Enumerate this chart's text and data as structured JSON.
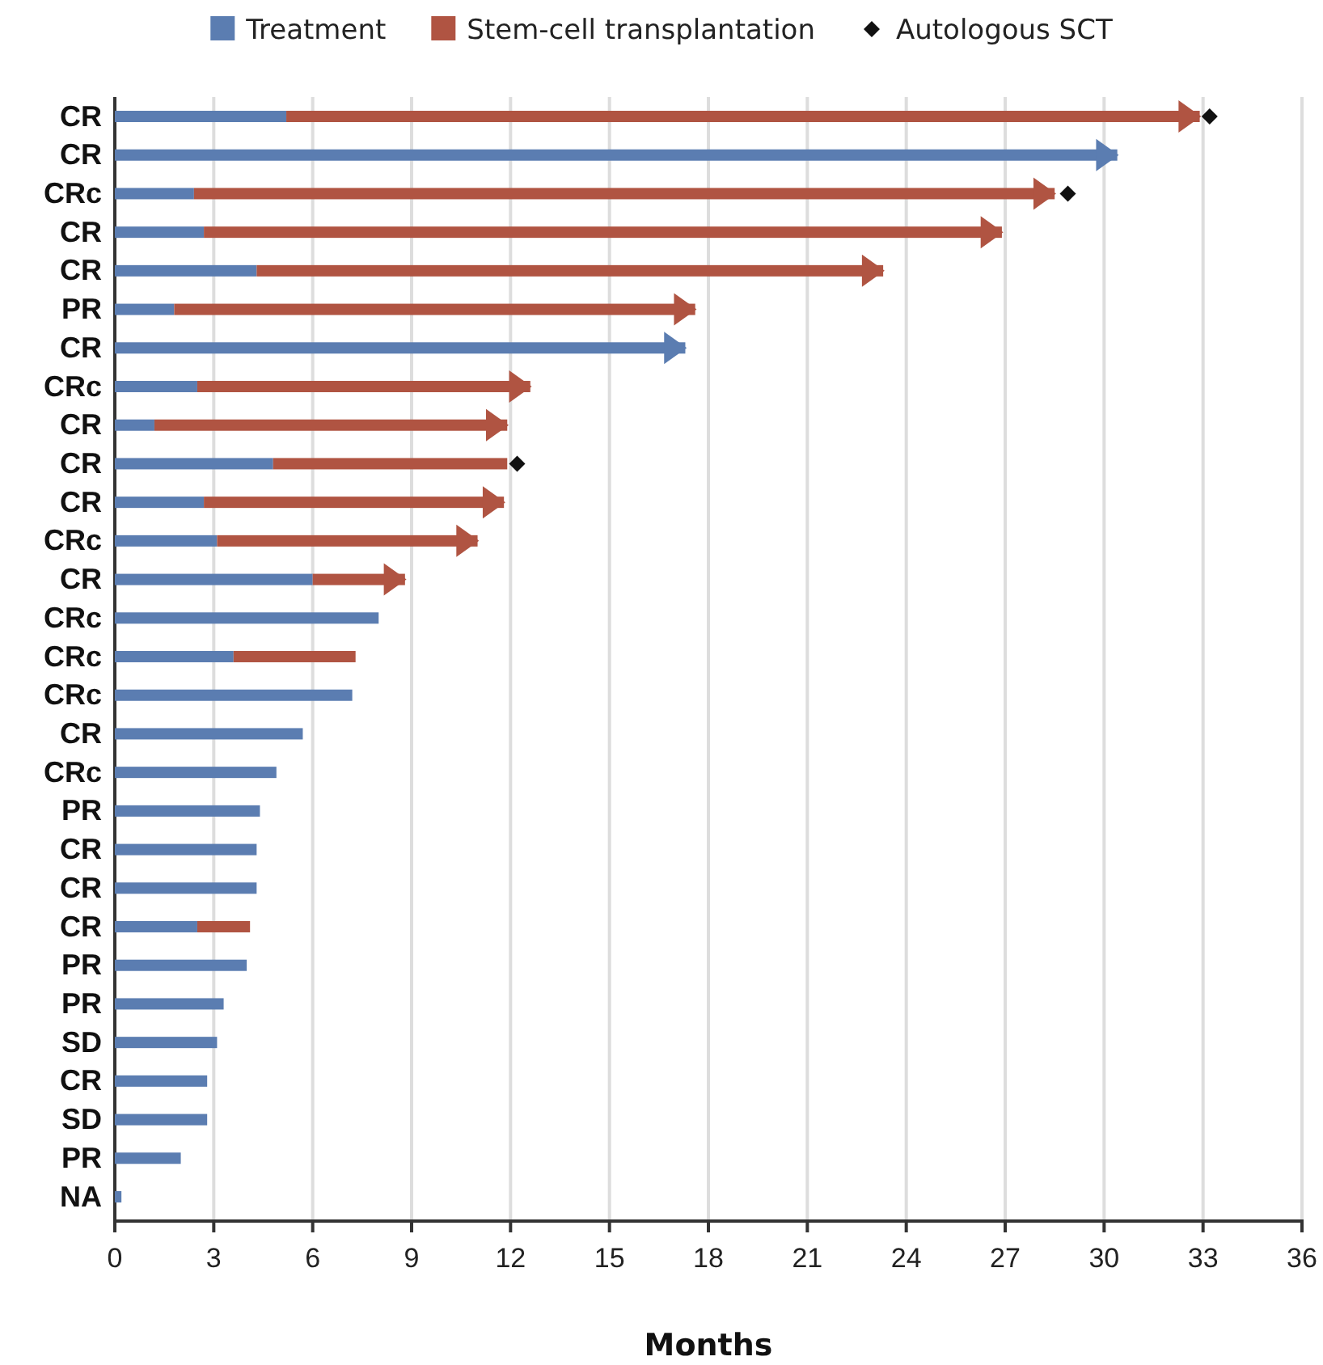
{
  "chart_data": {
    "type": "bar",
    "orientation": "horizontal",
    "stacked": true,
    "categories": [
      "CR",
      "CR",
      "CRc",
      "CR",
      "CR",
      "PR",
      "CR",
      "CRc",
      "CR",
      "CR",
      "CR",
      "CRc",
      "CR",
      "CRc",
      "CRc",
      "CRc",
      "CR",
      "CRc",
      "PR",
      "CR",
      "CR",
      "CR",
      "PR",
      "PR",
      "SD",
      "CR",
      "SD",
      "PR",
      "NA"
    ],
    "series": [
      {
        "name": "Treatment",
        "color": "#5b7db1",
        "values": [
          5.2,
          30.4,
          2.4,
          2.7,
          4.3,
          1.8,
          17.3,
          2.5,
          1.2,
          4.8,
          2.7,
          3.1,
          6.0,
          8.0,
          3.6,
          7.2,
          5.7,
          4.9,
          4.4,
          4.3,
          4.3,
          2.5,
          4.0,
          3.3,
          3.1,
          2.8,
          2.8,
          2.0,
          0.2
        ]
      },
      {
        "name": "Stem-cell transplantation",
        "color": "#b05442",
        "values": [
          27.7,
          null,
          26.1,
          24.2,
          19.0,
          15.8,
          null,
          10.1,
          10.7,
          7.1,
          9.1,
          7.9,
          2.8,
          null,
          3.7,
          null,
          null,
          null,
          null,
          null,
          null,
          1.6,
          null,
          null,
          null,
          null,
          null,
          null,
          null
        ]
      },
      {
        "type": "scatter",
        "marker": "triangle",
        "colors": [
          "#b05442",
          "#5b7db1",
          "#b05442",
          "#b05442",
          "#b05442",
          "#b05442",
          "#5b7db1",
          "#b05442",
          "#b05442",
          null,
          "#b05442",
          "#b05442",
          "#b05442",
          null,
          null,
          null,
          null,
          null,
          null,
          null,
          null,
          null,
          null,
          null,
          null,
          null,
          null,
          null,
          null
        ],
        "values": [
          32.6,
          30.1,
          28.2,
          26.6,
          23.0,
          17.3,
          17.0,
          12.3,
          11.6,
          null,
          11.5,
          10.7,
          8.5,
          null,
          null,
          null,
          null,
          null,
          null,
          null,
          null,
          null,
          null,
          null,
          null,
          null,
          null,
          null,
          null
        ]
      },
      {
        "name": "Autologous SCT",
        "type": "scatter",
        "marker": "diamond",
        "color": "#111111",
        "values": [
          33.2,
          null,
          28.9,
          null,
          null,
          null,
          null,
          null,
          null,
          12.2,
          null,
          null,
          null,
          null,
          null,
          null,
          null,
          null,
          null,
          null,
          null,
          null,
          null,
          null,
          null,
          null,
          null,
          null,
          null
        ]
      }
    ],
    "xlabel": "Months",
    "xlim": [
      0,
      36
    ],
    "xticks": [
      0,
      3,
      6,
      9,
      12,
      15,
      18,
      21,
      24,
      27,
      30,
      33,
      36
    ],
    "grid": "x",
    "legend": "top"
  }
}
